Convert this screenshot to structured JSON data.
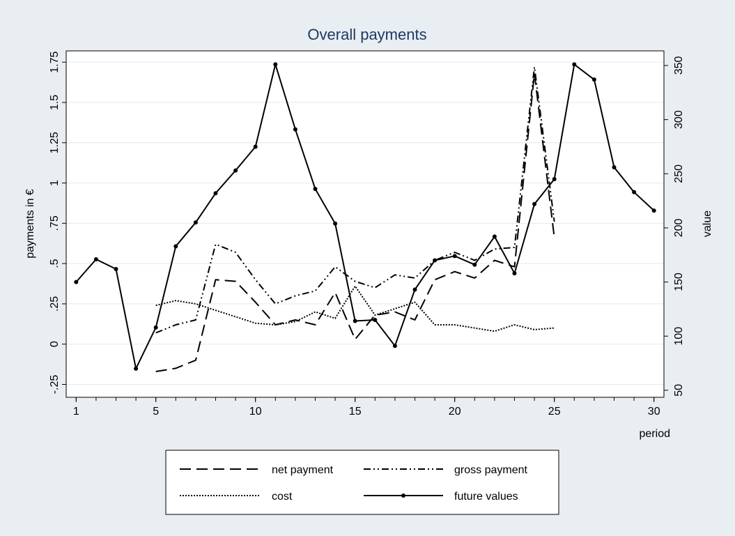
{
  "chart_data": {
    "type": "line",
    "title": "Overall payments",
    "xlabel": "period",
    "ylabel_left": "payments in €",
    "ylabel_right": "value",
    "x_ticks": [
      1,
      5,
      10,
      15,
      20,
      25,
      30
    ],
    "x_tick_labels": [
      "1",
      "5",
      "10",
      "15",
      "20",
      "25",
      "30"
    ],
    "xlim": [
      0.5,
      30.5
    ],
    "y_left_ticks": [
      -0.25,
      0,
      0.25,
      0.5,
      0.75,
      1,
      1.25,
      1.5,
      1.75
    ],
    "y_left_tick_labels": [
      "-.25",
      "0",
      ".25",
      ".5",
      ".75",
      "1",
      "1.25",
      "1.5",
      "1.75"
    ],
    "y_left_lim": [
      -0.33,
      1.82
    ],
    "y_right_ticks": [
      50,
      100,
      150,
      200,
      250,
      300,
      350
    ],
    "y_right_tick_labels": [
      "50",
      "100",
      "150",
      "200",
      "250",
      "300",
      "350"
    ],
    "y_right_lim": [
      43.5,
      363.5
    ],
    "grid": "horizontal (left axis)",
    "legend_position": "bottom",
    "series": [
      {
        "name": "net payment",
        "axis": "left",
        "style": "dashed",
        "color": "#000000",
        "x": [
          5,
          6,
          7,
          8,
          9,
          10,
          11,
          12,
          13,
          14,
          15,
          16,
          17,
          18,
          19,
          20,
          21,
          22,
          23,
          24,
          25
        ],
        "y": [
          -0.17,
          -0.15,
          -0.1,
          0.4,
          0.39,
          0.26,
          0.12,
          0.15,
          0.12,
          0.32,
          0.03,
          0.18,
          0.2,
          0.15,
          0.4,
          0.45,
          0.41,
          0.52,
          0.48,
          1.68,
          0.66
        ]
      },
      {
        "name": "gross payment",
        "axis": "left",
        "style": "dash-dot",
        "color": "#000000",
        "x": [
          5,
          6,
          7,
          8,
          9,
          10,
          11,
          12,
          13,
          14,
          15,
          16,
          17,
          18,
          19,
          20,
          21,
          22,
          23,
          24,
          25
        ],
        "y": [
          0.07,
          0.12,
          0.15,
          0.62,
          0.57,
          0.4,
          0.25,
          0.3,
          0.33,
          0.48,
          0.39,
          0.35,
          0.43,
          0.41,
          0.52,
          0.57,
          0.52,
          0.59,
          0.6,
          1.72,
          0.76
        ]
      },
      {
        "name": "cost",
        "axis": "left",
        "style": "dotted",
        "color": "#000000",
        "x": [
          5,
          6,
          7,
          8,
          9,
          10,
          11,
          12,
          13,
          14,
          15,
          16,
          17,
          18,
          19,
          20,
          21,
          22,
          23,
          24,
          25
        ],
        "y": [
          0.24,
          0.27,
          0.25,
          0.21,
          0.17,
          0.13,
          0.12,
          0.14,
          0.2,
          0.16,
          0.36,
          0.18,
          0.22,
          0.26,
          0.12,
          0.12,
          0.1,
          0.08,
          0.12,
          0.09,
          0.1
        ]
      },
      {
        "name": "future values",
        "axis": "right",
        "style": "solid-markers",
        "color": "#000000",
        "x": [
          1,
          2,
          3,
          4,
          5,
          6,
          7,
          8,
          9,
          10,
          11,
          12,
          13,
          14,
          15,
          16,
          17,
          18,
          19,
          20,
          21,
          22,
          23,
          24,
          25,
          26,
          27,
          28,
          29,
          30
        ],
        "y": [
          150,
          171,
          162,
          70,
          108,
          183,
          205,
          232,
          253,
          275,
          351,
          291,
          236,
          204,
          114,
          115,
          91,
          143,
          170,
          174,
          166,
          192,
          158,
          222,
          245,
          351,
          337,
          256,
          233,
          216
        ]
      }
    ]
  }
}
